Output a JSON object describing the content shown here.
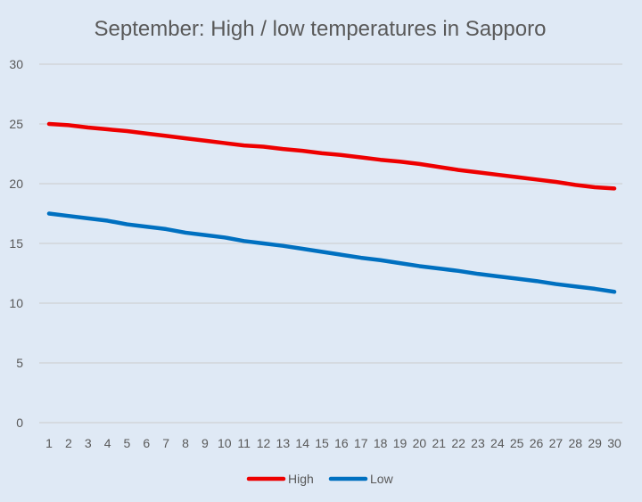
{
  "chart_data": {
    "type": "line",
    "title": "September: High / low temperatures in Sapporo",
    "xlabel": "",
    "ylabel": "",
    "ylim": [
      0,
      30
    ],
    "yticks": [
      0,
      5,
      10,
      15,
      20,
      25,
      30
    ],
    "grid": true,
    "legend_position": "bottom",
    "x": [
      1,
      2,
      3,
      4,
      5,
      6,
      7,
      8,
      9,
      10,
      11,
      12,
      13,
      14,
      15,
      16,
      17,
      18,
      19,
      20,
      21,
      22,
      23,
      24,
      25,
      26,
      27,
      28,
      29,
      30
    ],
    "series": [
      {
        "name": "High",
        "color": "#ee0000",
        "values": [
          25.0,
          24.9,
          24.7,
          24.55,
          24.4,
          24.2,
          24.0,
          23.8,
          23.6,
          23.4,
          23.2,
          23.1,
          22.9,
          22.75,
          22.55,
          22.4,
          22.2,
          22.0,
          21.85,
          21.65,
          21.4,
          21.15,
          20.95,
          20.75,
          20.55,
          20.35,
          20.15,
          19.9,
          19.7,
          19.6
        ]
      },
      {
        "name": "Low",
        "color": "#0070c0",
        "values": [
          17.5,
          17.3,
          17.1,
          16.9,
          16.6,
          16.4,
          16.2,
          15.9,
          15.7,
          15.5,
          15.2,
          15.0,
          14.8,
          14.55,
          14.3,
          14.05,
          13.8,
          13.6,
          13.35,
          13.1,
          12.9,
          12.7,
          12.45,
          12.25,
          12.05,
          11.85,
          11.6,
          11.4,
          11.2,
          10.95
        ]
      }
    ]
  }
}
